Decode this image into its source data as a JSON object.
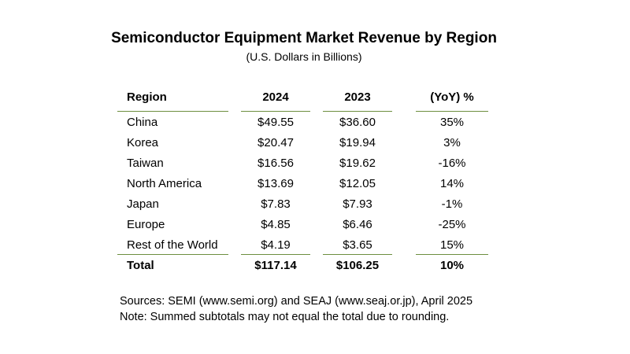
{
  "title": "Semiconductor Equipment Market Revenue by Region",
  "subtitle": "(U.S. Dollars in Billions)",
  "table": {
    "headers": [
      "Region",
      "2024",
      "2023",
      "(YoY) %"
    ],
    "rows": [
      [
        "China",
        "$49.55",
        "$36.60",
        "35%"
      ],
      [
        "Korea",
        "$20.47",
        "$19.94",
        "3%"
      ],
      [
        "Taiwan",
        "$16.56",
        "$19.62",
        "-16%"
      ],
      [
        "North America",
        "$13.69",
        "$12.05",
        "14%"
      ],
      [
        "Japan",
        "$7.83",
        "$7.93",
        "-1%"
      ],
      [
        "Europe",
        "$4.85",
        "$6.46",
        "-25%"
      ],
      [
        "Rest of the World",
        "$4.19",
        "$3.65",
        "15%"
      ]
    ],
    "total": [
      "Total",
      "$117.14",
      "$106.25",
      "10%"
    ]
  },
  "notes": {
    "sources": "Sources: SEMI (www.semi.org) and SEAJ (www.seaj.or.jp), April 2025",
    "note": "Note: Summed subtotals may not equal the total due to rounding."
  },
  "colors": {
    "rule": "#6d8f3f",
    "text": "#000000"
  }
}
